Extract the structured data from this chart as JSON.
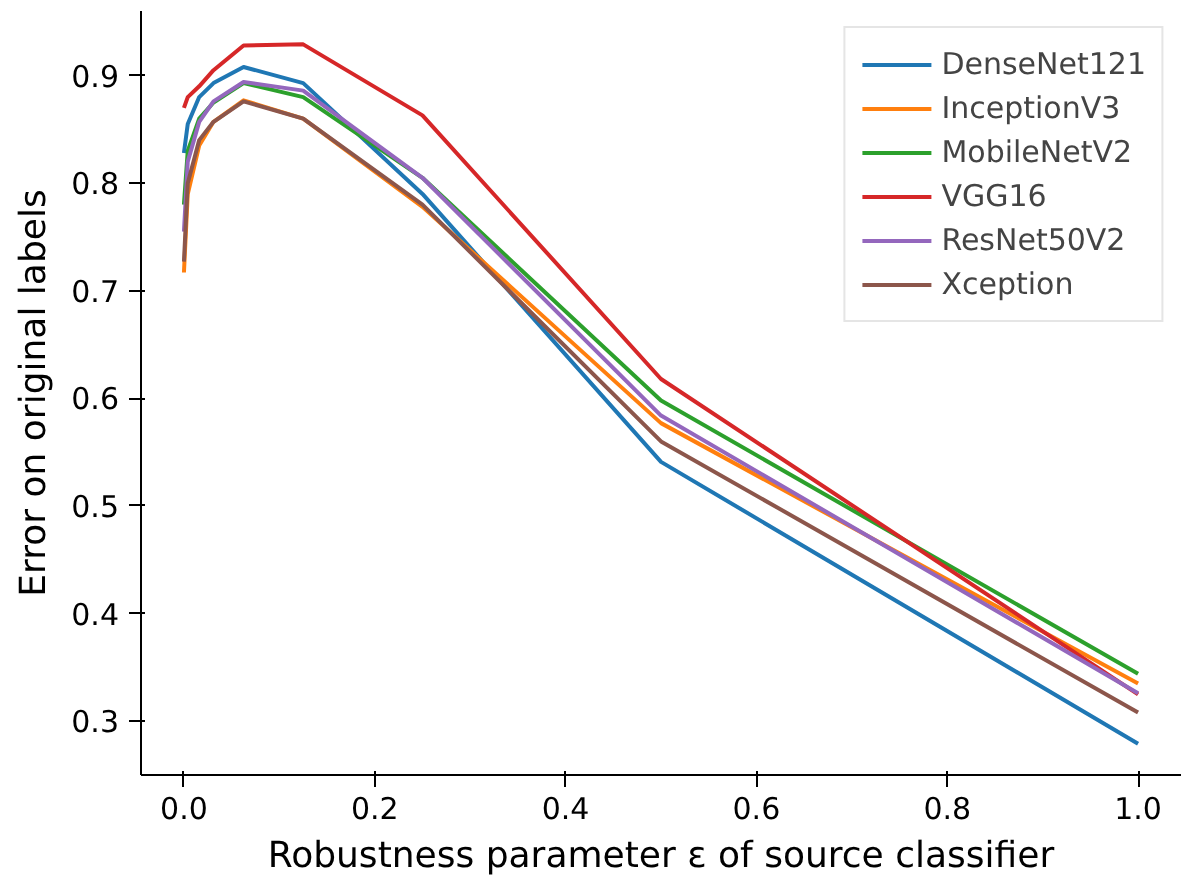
{
  "chart_data": {
    "type": "line",
    "xlabel": "Robustness parameter ε of source classifier",
    "ylabel": "Error on original labels",
    "x": [
      0,
      0.004,
      0.016,
      0.031,
      0.0625,
      0.125,
      0.25,
      0.5,
      1.0
    ],
    "xlim": [
      -0.045,
      1.045
    ],
    "ylim": [
      0.25,
      0.96
    ],
    "xticks": [
      {
        "value": 0,
        "label": "0.0"
      },
      0.2,
      0.4,
      0.6,
      0.8,
      {
        "value": 1,
        "label": "1.0"
      }
    ],
    "yticks": [
      0.3,
      0.4,
      0.5,
      0.6,
      0.7,
      0.8,
      0.9
    ],
    "grid": false,
    "legend": "top right",
    "marker": "none",
    "line_style": "solid",
    "series": [
      {
        "name": "DenseNet121",
        "color": "#1f77b4",
        "values": [
          0.828,
          0.855,
          0.88,
          0.893,
          0.908,
          0.893,
          0.79,
          0.541,
          0.279
        ]
      },
      {
        "name": "InceptionV3",
        "color": "#ff7f0e",
        "values": [
          0.717,
          0.79,
          0.835,
          0.857,
          0.877,
          0.86,
          0.778,
          0.577,
          0.335
        ]
      },
      {
        "name": "MobileNetV2",
        "color": "#2ca02c",
        "values": [
          0.78,
          0.83,
          0.86,
          0.875,
          0.893,
          0.88,
          0.805,
          0.598,
          0.344
        ]
      },
      {
        "name": "VGG16",
        "color": "#d62728",
        "values": [
          0.87,
          0.88,
          0.89,
          0.905,
          0.928,
          0.929,
          0.863,
          0.618,
          0.325
        ]
      },
      {
        "name": "ResNet50V2",
        "color": "#9467bd",
        "values": [
          0.755,
          0.82,
          0.857,
          0.876,
          0.894,
          0.886,
          0.805,
          0.584,
          0.326
        ]
      },
      {
        "name": "Xception",
        "color": "#8c564b",
        "values": [
          0.727,
          0.8,
          0.84,
          0.857,
          0.876,
          0.86,
          0.78,
          0.56,
          0.308
        ]
      }
    ]
  }
}
